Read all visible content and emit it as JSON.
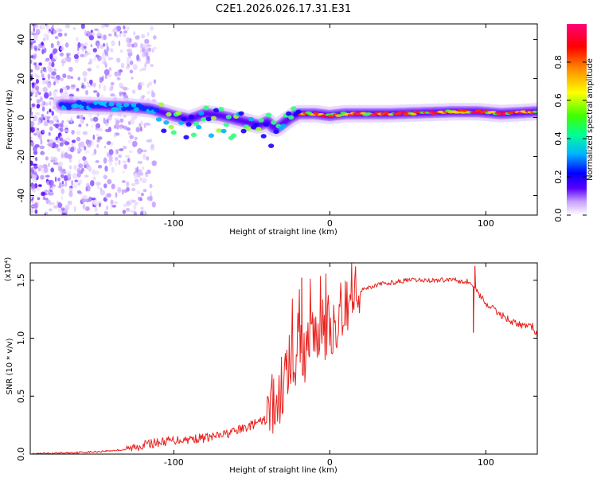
{
  "figure_title": "C2E1.2026.026.17.31.E31",
  "chart_data": [
    {
      "type": "heatmap",
      "title": "C2E1.2026.026.17.31.E31",
      "xlabel": "Height of straight line (km)",
      "ylabel": "Frequency (Hz)",
      "xlim": [
        -192,
        133
      ],
      "ylim": [
        -50,
        48
      ],
      "x_ticks": [
        -100,
        0,
        100
      ],
      "x_tick_labels": [
        "-100",
        "0",
        "100"
      ],
      "y_ticks": [
        -40,
        -20,
        0,
        20,
        40
      ],
      "y_tick_labels": [
        "-40",
        "-20",
        "0",
        "20",
        "40"
      ],
      "colorbar": {
        "label": "Normalized spectral amplitude",
        "range": [
          0,
          1
        ],
        "ticks": [
          0.0,
          0.2,
          0.4,
          0.6,
          0.8
        ],
        "tick_labels": [
          "0.0",
          "0.2",
          "0.4",
          "0.6",
          "0.8"
        ],
        "colors": [
          "#ffffff",
          "#c8a0ff",
          "#5a00ff",
          "#0000ff",
          "#00c8ff",
          "#00ff80",
          "#40ff00",
          "#ffff00",
          "#ff8000",
          "#ff0000",
          "#ff0080"
        ]
      },
      "ridge": {
        "name": "dominant frequency",
        "x": [
          -170,
          -150,
          -130,
          -115,
          -100,
          -90,
          -80,
          -70,
          -60,
          -50,
          -45,
          -40,
          -35,
          -30,
          -25,
          -20,
          -10,
          0,
          10,
          20,
          40,
          60,
          80,
          95,
          110,
          133
        ],
        "y": [
          6.5,
          6,
          5.5,
          4.5,
          1,
          -1,
          2,
          1,
          -1,
          -3,
          -4,
          -2,
          -6,
          -3,
          0,
          2,
          2,
          1,
          2,
          2,
          2,
          2.5,
          3,
          3,
          2,
          3
        ]
      }
    },
    {
      "type": "line",
      "xlabel": "Height of straight line (km)",
      "ylabel": "SNR (10 * v/v)",
      "y_multiplier": "(x10⁴)",
      "xlim": [
        -192,
        133
      ],
      "ylim": [
        0,
        1.65
      ],
      "x_ticks": [
        -100,
        0,
        100
      ],
      "x_tick_labels": [
        "-100",
        "0",
        "100"
      ],
      "y_ticks": [
        0.0,
        0.5,
        1.0,
        1.5
      ],
      "y_tick_labels": [
        "0.0",
        "0.5",
        "1.0",
        "1.5"
      ],
      "series": [
        {
          "name": "SNR",
          "color": "#e8231f",
          "x": [
            -192,
            -170,
            -150,
            -130,
            -120,
            -110,
            -100,
            -90,
            -80,
            -70,
            -60,
            -50,
            -40,
            -35,
            -30,
            -25,
            -20,
            -15,
            -10,
            -5,
            0,
            5,
            10,
            15,
            20,
            30,
            40,
            50,
            60,
            70,
            80,
            85,
            90,
            95,
            100,
            105,
            110,
            120,
            130,
            133
          ],
          "y": [
            0.0,
            0.01,
            0.02,
            0.04,
            0.08,
            0.1,
            0.12,
            0.13,
            0.14,
            0.16,
            0.2,
            0.25,
            0.3,
            0.45,
            0.6,
            0.8,
            0.85,
            0.9,
            1.0,
            1.05,
            1.1,
            1.2,
            1.3,
            1.38,
            1.42,
            1.46,
            1.48,
            1.5,
            1.5,
            1.5,
            1.51,
            1.5,
            1.48,
            1.4,
            1.3,
            1.25,
            1.2,
            1.12,
            1.1,
            1.02
          ]
        }
      ],
      "annotations": [
        {
          "x": -18,
          "y": 1.52
        },
        {
          "x": 93,
          "y": 1.62
        },
        {
          "x": 92,
          "y": 1.05
        }
      ]
    }
  ]
}
